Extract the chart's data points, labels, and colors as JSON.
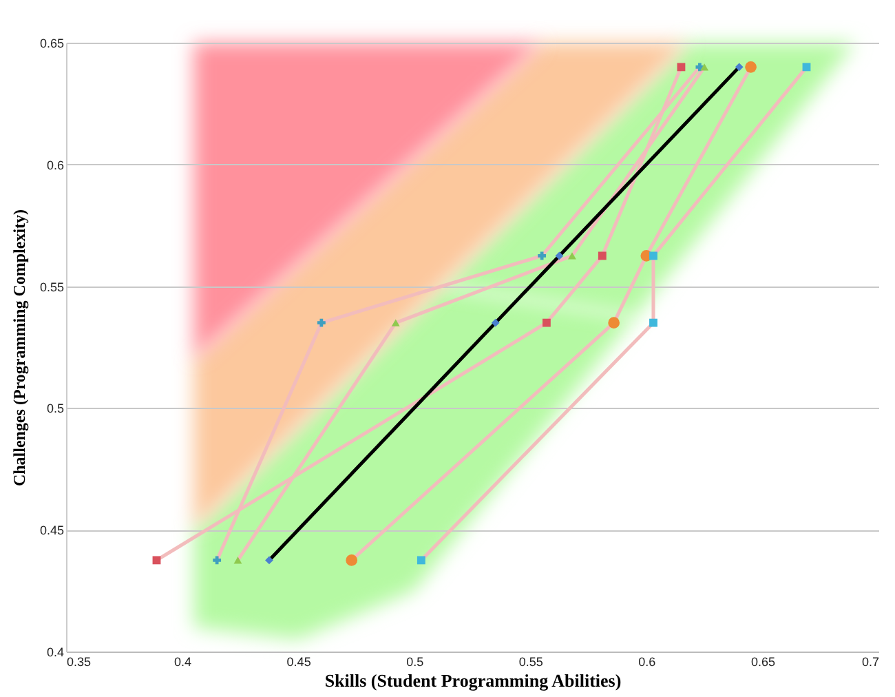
{
  "chart_data": {
    "type": "line",
    "xlabel": "Skills (Student Programming Abilities)",
    "ylabel": "Challenges (Programming Complexity)",
    "xlim": [
      0.35,
      0.7
    ],
    "xticks": [
      0.35,
      0.4,
      0.45,
      0.5,
      0.55,
      0.6,
      0.65,
      0.7
    ],
    "ylim": [
      0.4,
      0.65
    ],
    "yticks": [
      0.4,
      0.45,
      0.5,
      0.55,
      0.6,
      0.65
    ],
    "grid": "y",
    "series": [
      {
        "color": "#f2bcbc",
        "x": [
          0.389,
          0.557,
          0.581,
          0.615
        ],
        "values": [
          0.4375,
          0.535,
          0.5625,
          0.64
        ]
      },
      {
        "color": "#f2bcbc",
        "x": [
          0.415,
          0.46,
          0.555,
          0.623
        ],
        "values": [
          0.4375,
          0.535,
          0.5625,
          0.64
        ]
      },
      {
        "color": "#f2bcbc",
        "x": [
          0.424,
          0.492,
          0.568,
          0.625
        ],
        "values": [
          0.4375,
          0.535,
          0.5625,
          0.64
        ]
      },
      {
        "color": "#000000",
        "x": [
          0.4375,
          0.535,
          0.5625,
          0.64
        ],
        "values": [
          0.4375,
          0.535,
          0.5625,
          0.64
        ]
      },
      {
        "color": "#f2bcbc",
        "x": [
          0.473,
          0.586,
          0.6,
          0.645
        ],
        "values": [
          0.4375,
          0.535,
          0.5625,
          0.64
        ]
      },
      {
        "color": "#f2bcbc",
        "x": [
          0.503,
          0.603,
          0.603,
          0.669
        ],
        "values": [
          0.4375,
          0.535,
          0.5625,
          0.64
        ]
      },
      {
        "type": "scatter",
        "marker": "square",
        "color": "#d9515c",
        "x": [
          0.389,
          0.557,
          0.581,
          0.615
        ],
        "values": [
          0.4375,
          0.535,
          0.5625,
          0.64
        ]
      },
      {
        "type": "scatter",
        "marker": "cross",
        "color": "#3f9fbf",
        "x": [
          0.415,
          0.46,
          0.555,
          0.623
        ],
        "values": [
          0.4375,
          0.535,
          0.5625,
          0.64
        ]
      },
      {
        "type": "scatter",
        "marker": "triangle",
        "color": "#8fc94e",
        "x": [
          0.424,
          0.492,
          0.568,
          0.625
        ],
        "values": [
          0.4375,
          0.535,
          0.5625,
          0.64
        ]
      },
      {
        "type": "scatter",
        "marker": "diamond",
        "color": "#4a7fcf",
        "x": [
          0.4375,
          0.535,
          0.5625,
          0.64
        ],
        "values": [
          0.4375,
          0.535,
          0.5625,
          0.64
        ]
      },
      {
        "type": "scatter",
        "marker": "circle",
        "color": "#ee8a35",
        "x": [
          0.473,
          0.586,
          0.6,
          0.645
        ],
        "values": [
          0.4375,
          0.535,
          0.5625,
          0.64
        ]
      },
      {
        "type": "scatter",
        "marker": "square",
        "color": "#3fb8dc",
        "x": [
          0.503,
          0.603,
          0.603,
          0.669
        ],
        "values": [
          0.4375,
          0.535,
          0.5625,
          0.64
        ]
      }
    ]
  }
}
